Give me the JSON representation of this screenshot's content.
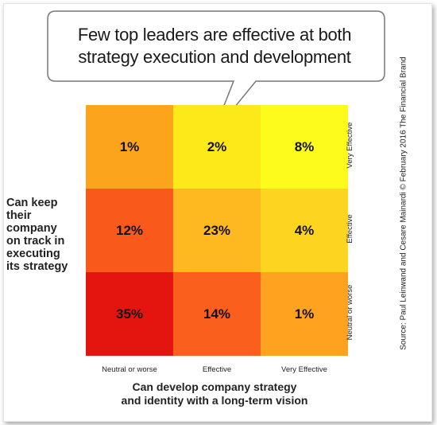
{
  "callout": {
    "line1": "Few top leaders are effective at both",
    "line2": "strategy execution and development"
  },
  "y_axis_title": {
    "line1": "Can keep",
    "line2": "their company",
    "line3": "on track in",
    "line4": "executing",
    "line5": "its strategy"
  },
  "x_axis_title": {
    "line1": "Can develop company strategy",
    "line2": "and identity with a long-term vision"
  },
  "source": "Source: Paul Leinwand and Cesare Mainardi © February 2016 The Financial Brand",
  "chart_data": {
    "type": "heatmap",
    "x_categories": [
      "Neutral or worse",
      "Effective",
      "Very Effective"
    ],
    "y_categories_top_to_bottom": [
      "Very Effective",
      "Effective",
      "Neutral or worse"
    ],
    "xlabel": "Can develop company strategy and identity with a long-term vision",
    "ylabel": "Can keep their company on track in executing its strategy",
    "title": "Few top leaders are effective at both strategy execution and development",
    "values": [
      [
        "1%",
        "2%",
        "8%"
      ],
      [
        "12%",
        "23%",
        "4%"
      ],
      [
        "35%",
        "14%",
        "1%"
      ]
    ],
    "colors": [
      [
        "#fba41c",
        "#fde81a",
        "#fcfb1c"
      ],
      [
        "#f95a1c",
        "#feb820",
        "#fdd41f"
      ],
      [
        "#e4150e",
        "#fa5f1d",
        "#fea21f"
      ]
    ]
  }
}
